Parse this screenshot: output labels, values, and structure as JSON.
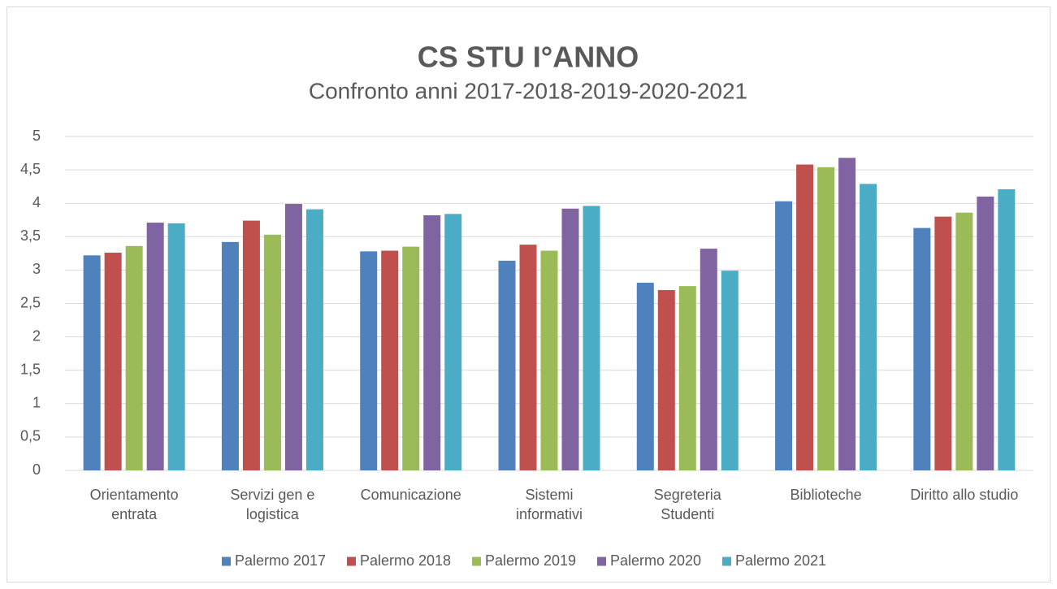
{
  "chart_data": {
    "type": "bar",
    "title": "CS STU I°ANNO",
    "subtitle": "Confronto anni 2017-2018-2019-2020-2021",
    "categories": [
      "Orientamento\nentrata",
      "Servizi gen e\nlogistica",
      "Comunicazione",
      "Sistemi\ninformativi",
      "Segreteria\nStudenti",
      "Biblioteche",
      "Diritto allo studio"
    ],
    "series": [
      {
        "name": "Palermo 2017",
        "color": "#4f81bd",
        "values": [
          3.22,
          3.42,
          3.28,
          3.14,
          2.81,
          4.03,
          3.63
        ]
      },
      {
        "name": "Palermo 2018",
        "color": "#c0504d",
        "values": [
          3.26,
          3.74,
          3.29,
          3.38,
          2.7,
          4.58,
          3.8
        ]
      },
      {
        "name": "Palermo 2019",
        "color": "#9bbb59",
        "values": [
          3.36,
          3.53,
          3.35,
          3.29,
          2.76,
          4.54,
          3.86
        ]
      },
      {
        "name": "Palermo 2020",
        "color": "#8064a2",
        "values": [
          3.71,
          3.99,
          3.82,
          3.92,
          3.32,
          4.68,
          4.1
        ]
      },
      {
        "name": "Palermo 2021",
        "color": "#4bacc6",
        "values": [
          3.7,
          3.91,
          3.84,
          3.96,
          2.99,
          4.29,
          4.21
        ]
      }
    ],
    "ylim": [
      0,
      5
    ],
    "yticks": [
      0,
      {
        "value": 0.5,
        "label": "0,5"
      },
      1,
      {
        "value": 1.5,
        "label": "1,5"
      },
      2,
      {
        "value": 2.5,
        "label": "2,5"
      },
      3,
      {
        "value": 3.5,
        "label": "3,5"
      },
      4,
      {
        "value": 4.5,
        "label": "4,5"
      },
      5
    ],
    "grid": true,
    "legend": "bottom"
  }
}
